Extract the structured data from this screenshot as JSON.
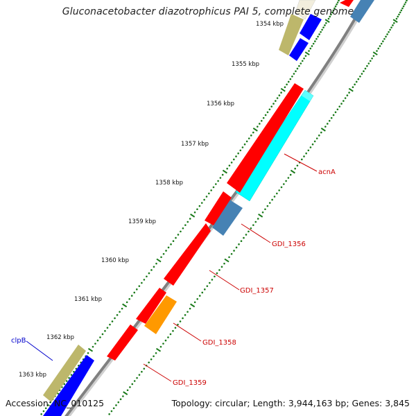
{
  "title": "Gluconacetobacter diazotrophicus PAI 5, complete genome",
  "footer": {
    "accession": "Accession: NC_010125",
    "topology": "Topology: circular; Length: 3,944,163 bp; Genes: 3,845"
  },
  "scale_labels": [
    "1354 kbp",
    "1355 kbp",
    "1356 kbp",
    "1357 kbp",
    "1358 kbp",
    "1359 kbp",
    "1360 kbp",
    "1361 kbp",
    "1362 kbp",
    "1363 kbp"
  ],
  "colors": {
    "backbone": "#808080",
    "tick": "#1a7a1a",
    "label_red": "#cc0000",
    "label_blue": "#0000cc",
    "gene_red": "#ff0000",
    "gene_blue": "#0000ff",
    "gene_cyan": "#00ffff",
    "gene_steelblue": "#4682b4",
    "gene_orange": "#ff9900",
    "gene_khaki": "#bdb76b"
  },
  "genes": [
    {
      "name": "acnA",
      "color": "gene_cyan",
      "strand": "outer",
      "label_color": "label_red"
    },
    {
      "name": "GDI_1356",
      "color": "gene_steelblue",
      "strand": "outer",
      "label_color": "label_red"
    },
    {
      "name": "GDI_1357",
      "color": "gene_red",
      "strand": "inner",
      "label_color": "label_red"
    },
    {
      "name": "GDI_1358",
      "color": "gene_orange",
      "strand": "outer",
      "label_color": "label_red"
    },
    {
      "name": "GDI_1359",
      "color": "gene_red",
      "strand": "inner",
      "label_color": "label_red"
    },
    {
      "name": "clpB",
      "color": "gene_khaki",
      "strand": "inner",
      "label_color": "label_blue"
    }
  ]
}
